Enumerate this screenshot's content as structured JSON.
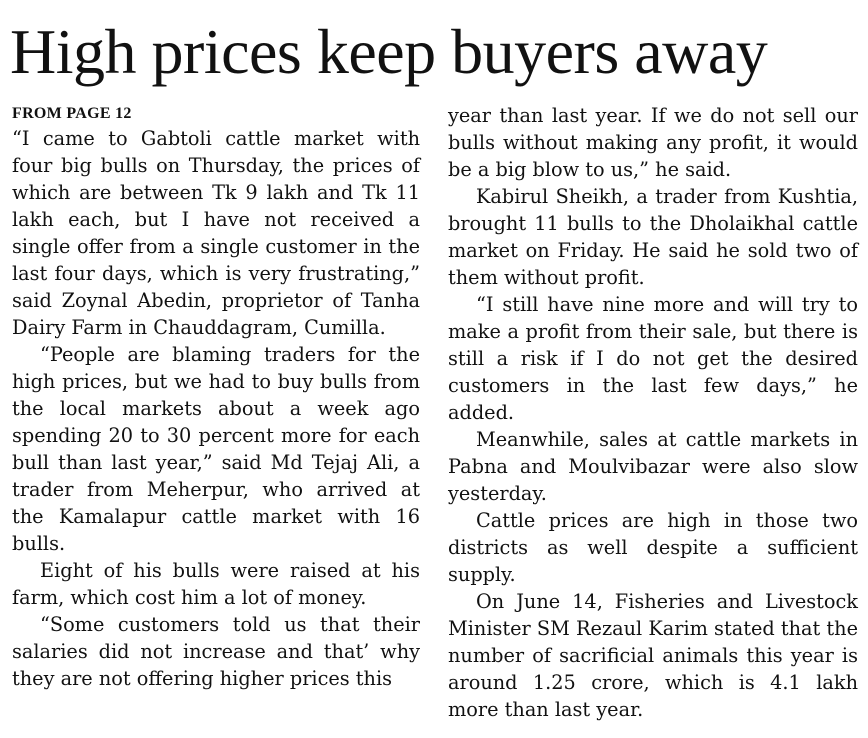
{
  "headline": "High prices keep buyers away",
  "kicker": "FROM PAGE 12",
  "left_column": [
    "“I came to Gabtoli cattle market with four big bulls on Thursday, the prices of which are between Tk 9 lakh and Tk 11 lakh each, but I have not received a single offer from a single customer in the last four days, which is very frustrating,” said Zoynal Abedin, proprietor of Tanha Dairy Farm in Chauddagram, Cumilla.",
    "“People are blaming traders for the high prices, but we had to buy bulls from the local markets about a week ago spending 20 to 30 percent more for each bull than last year,” said Md Tejaj Ali, a trader from Meherpur, who arrived at the Kamalapur cattle market with 16 bulls.",
    "Eight of his bulls were raised at his farm, which cost him a lot of money.",
    "“Some customers told us that their salaries did not increase and that’ why they are not offering higher prices this"
  ],
  "right_column": [
    "year than last year. If we do not sell our bulls without making any profit, it would be a big blow to us,” he said.",
    "Kabirul Sheikh, a trader from Kushtia, brought 11 bulls to the Dholaikhal cattle market on Friday. He said he sold two of them without profit.",
    "“I still have nine more and will try to make a profit from their sale, but there is still a risk if I do not get the desired customers in the last few days,” he added.",
    "Meanwhile, sales at cattle markets in Pabna and Moulvibazar were also slow yesterday.",
    "Cattle prices are high in those two districts as well despite a sufficient supply.",
    "On June 14, Fisheries and Livestock Minister SM Rezaul Karim stated that the number of sacrificial animals this year is around 1.25 crore, which is 4.1 lakh more than last year."
  ]
}
